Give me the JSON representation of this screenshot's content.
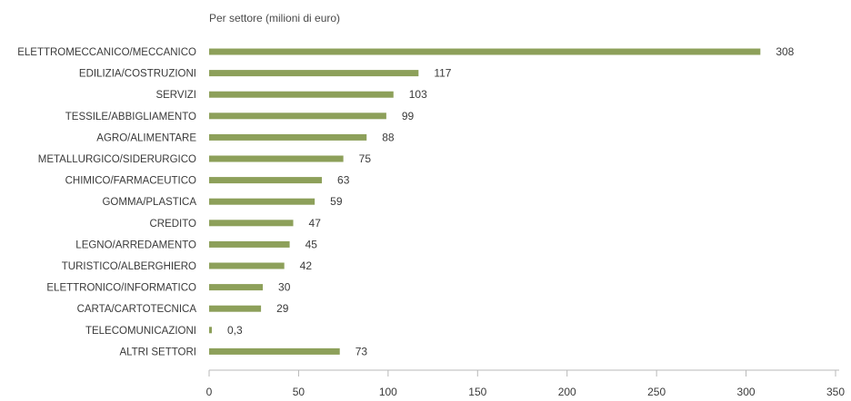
{
  "chart_data": {
    "type": "bar",
    "orientation": "horizontal",
    "title": "Per settore (milioni di euro)",
    "categories": [
      "ELETTROMECCANICO/MECCANICO",
      "EDILIZIA/COSTRUZIONI",
      "SERVIZI",
      "TESSILE/ABBIGLIAMENTO",
      "AGRO/ALIMENTARE",
      "METALLURGICO/SIDERURGICO",
      "CHIMICO/FARMACEUTICO",
      "GOMMA/PLASTICA",
      "CREDITO",
      "LEGNO/ARREDAMENTO",
      "TURISTICO/ALBERGHIERO",
      "ELETTRONICO/INFORMATICO",
      "CARTA/CARTOTECNICA",
      "TELECOMUNICAZIONI",
      "ALTRI SETTORI"
    ],
    "values": [
      308,
      117,
      103,
      99,
      88,
      75,
      63,
      59,
      47,
      45,
      42,
      30,
      29,
      0.3,
      73
    ],
    "value_labels": [
      "308",
      "117",
      "103",
      "99",
      "88",
      "75",
      "63",
      "59",
      "47",
      "45",
      "42",
      "30",
      "29",
      "0,3",
      "73"
    ],
    "xlim": [
      0,
      350
    ],
    "xticks": [
      0,
      50,
      100,
      150,
      200,
      250,
      300,
      350
    ],
    "xlabel": "",
    "ylabel": "",
    "grid": false,
    "bar_color": "#8da05a"
  }
}
